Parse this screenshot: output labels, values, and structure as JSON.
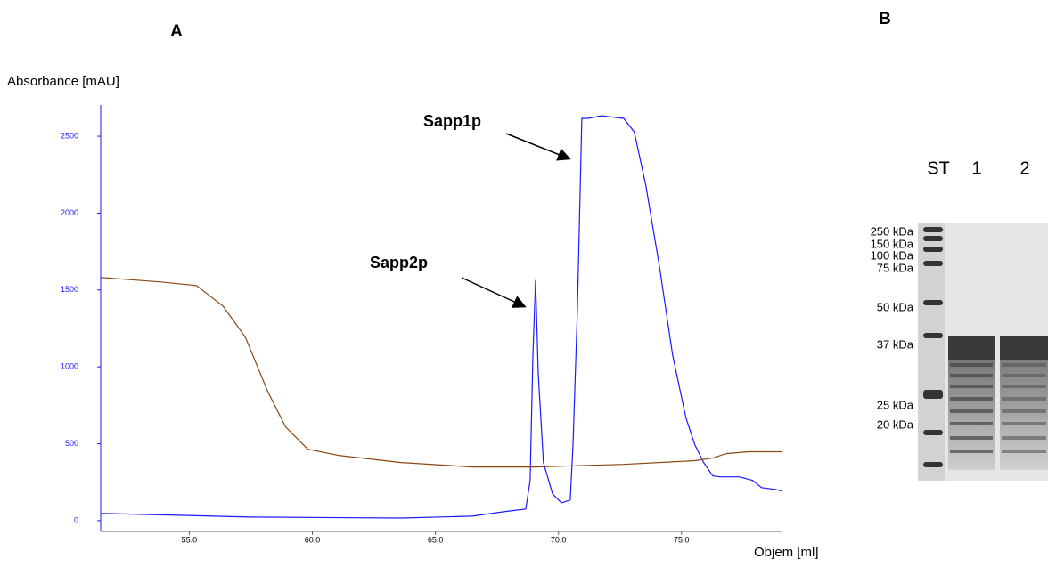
{
  "panels": [
    "A",
    "B"
  ],
  "chart_data": {
    "type": "line",
    "y_label": "Absorbance [mAU]",
    "x_label": "Objem [ml]",
    "xlim": [
      51.4,
      79.1
    ],
    "xticks": [
      {
        "value": 55,
        "label": "55.0"
      },
      {
        "value": 60,
        "label": "60.0"
      },
      {
        "value": 65,
        "label": "65.0"
      },
      {
        "value": 70,
        "label": "70.0"
      },
      {
        "value": 75,
        "label": "75.0"
      }
    ],
    "ylim": [
      -70,
      2703
    ],
    "yticks": [
      0,
      500,
      1000,
      1500,
      2000,
      2500
    ],
    "series": [
      {
        "color": "#1a1aff",
        "x": [
          51.42,
          54.57,
          57.46,
          63.61,
          66.5,
          67.77,
          68.67,
          68.85,
          68.96,
          69.07,
          69.18,
          69.39,
          69.76,
          70.12,
          70.48,
          70.59,
          70.77,
          70.95,
          71.2,
          71.75,
          72.65,
          73.08,
          73.55,
          74.1,
          74.64,
          75.18,
          75.54,
          75.9,
          76.27,
          76.56,
          77.35,
          77.89,
          78.25,
          78.8,
          79.09
        ],
        "values": [
          47,
          35,
          23,
          17,
          29,
          58,
          76,
          262,
          1076,
          1564,
          959,
          378,
          174,
          116,
          134,
          494,
          1366,
          2616,
          2616,
          2633,
          2616,
          2529,
          2180,
          1657,
          1076,
          669,
          494,
          378,
          291,
          285,
          285,
          262,
          215,
          203,
          192
        ]
      },
      {
        "color": "#8b4513",
        "x": [
          51.42,
          53.84,
          55.29,
          56.37,
          57.28,
          58.18,
          58.91,
          59.81,
          61.08,
          63.61,
          66.5,
          69.03,
          72.65,
          75.54,
          76.27,
          76.81,
          77.71,
          79.09
        ],
        "values": [
          1581,
          1552,
          1529,
          1395,
          1192,
          843,
          610,
          465,
          424,
          378,
          349,
          349,
          366,
          390,
          407,
          436,
          448,
          448
        ]
      }
    ],
    "annotations": [
      {
        "text": "Sapp1p"
      },
      {
        "text": "Sapp2p"
      }
    ]
  },
  "gel": {
    "lanes": [
      "ST",
      "1",
      "2"
    ],
    "markers": [
      "250 kDa",
      "150 kDa",
      "100 kDa",
      "75 kDa",
      "50 kDa",
      "37 kDa",
      "25 kDa",
      "20 kDa"
    ]
  }
}
